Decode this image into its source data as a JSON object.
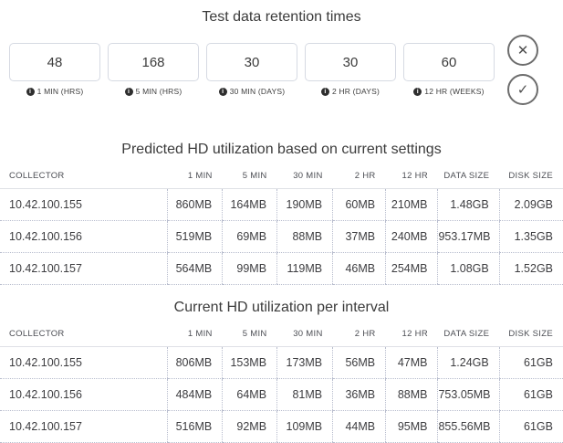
{
  "page": {
    "title": "Test data retention times"
  },
  "retention_inputs": [
    {
      "value": "48",
      "label": "1 MIN (HRS)"
    },
    {
      "value": "168",
      "label": "5 MIN (HRS)"
    },
    {
      "value": "30",
      "label": "30 MIN (DAYS)"
    },
    {
      "value": "30",
      "label": "2 HR (DAYS)"
    },
    {
      "value": "60",
      "label": "12 HR (WEEKS)"
    }
  ],
  "icons": {
    "cancel": "✕",
    "confirm": "✓",
    "info": "i"
  },
  "tables": [
    {
      "title": "Predicted HD utilization based on current settings",
      "columns": [
        "COLLECTOR",
        "1 MIN",
        "5 MIN",
        "30 MIN",
        "2 HR",
        "12 HR",
        "DATA SIZE",
        "DISK SIZE"
      ],
      "rows": [
        [
          "10.42.100.155",
          "860MB",
          "164MB",
          "190MB",
          "60MB",
          "210MB",
          "1.48GB",
          "2.09GB"
        ],
        [
          "10.42.100.156",
          "519MB",
          "69MB",
          "88MB",
          "37MB",
          "240MB",
          "953.17MB",
          "1.35GB"
        ],
        [
          "10.42.100.157",
          "564MB",
          "99MB",
          "119MB",
          "46MB",
          "254MB",
          "1.08GB",
          "1.52GB"
        ]
      ]
    },
    {
      "title": "Current HD utilization per interval",
      "columns": [
        "COLLECTOR",
        "1 MIN",
        "5 MIN",
        "30 MIN",
        "2 HR",
        "12 HR",
        "DATA SIZE",
        "DISK SIZE"
      ],
      "rows": [
        [
          "10.42.100.155",
          "806MB",
          "153MB",
          "173MB",
          "56MB",
          "47MB",
          "1.24GB",
          "61GB"
        ],
        [
          "10.42.100.156",
          "484MB",
          "64MB",
          "81MB",
          "36MB",
          "88MB",
          "753.05MB",
          "61GB"
        ],
        [
          "10.42.100.157",
          "516MB",
          "92MB",
          "109MB",
          "44MB",
          "95MB",
          "855.56MB",
          "61GB"
        ]
      ]
    }
  ],
  "colors": {
    "text": "#3b3b3b",
    "input_border": "#d6dae3",
    "dotted_border": "#b7bccd",
    "header_underline": "#dfe1e6",
    "button_border": "#6d6d6d"
  }
}
